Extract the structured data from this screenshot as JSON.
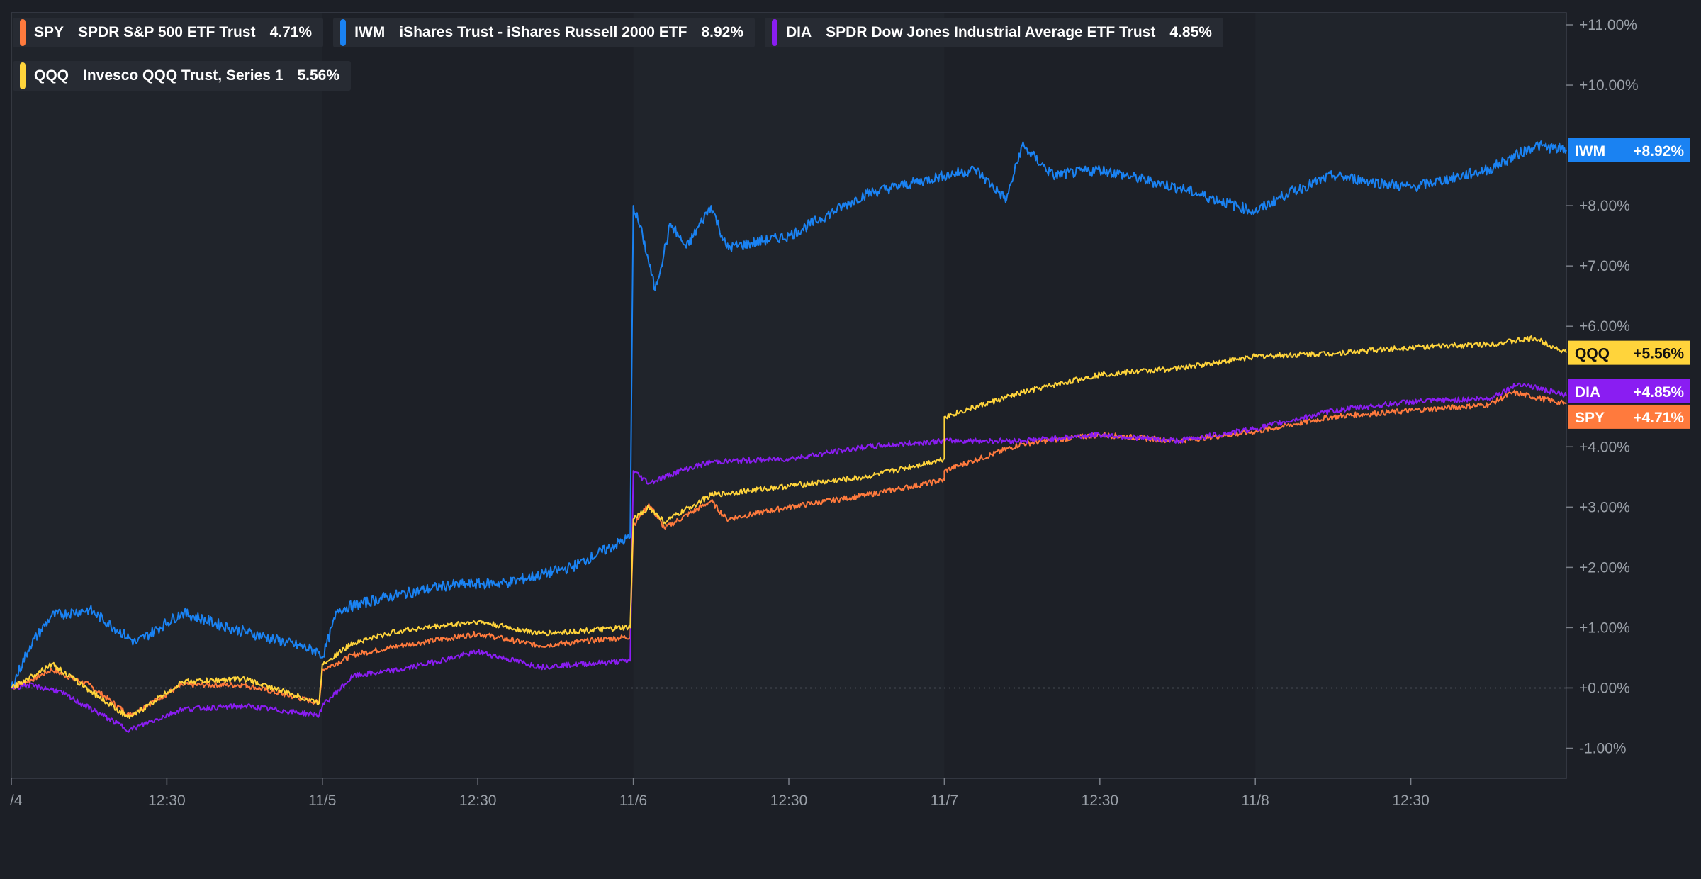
{
  "chart_data": {
    "type": "line",
    "title": "",
    "xlabel": "",
    "ylabel": "",
    "x_tick_labels": [
      "/4",
      "12:30",
      "11/5",
      "12:30",
      "11/6",
      "12:30",
      "11/7",
      "12:30",
      "11/8",
      "12:30"
    ],
    "x_tick_positions": [
      0,
      0.5,
      1,
      1.5,
      2,
      2.5,
      3,
      3.5,
      4,
      4.5
    ],
    "x_range": [
      0,
      5
    ],
    "y_tick_labels": [
      "+11.00%",
      "+10.00%",
      "+8.00%",
      "+7.00%",
      "+6.00%",
      "+4.00%",
      "+3.00%",
      "+2.00%",
      "+1.00%",
      "+0.00%",
      "-1.00%"
    ],
    "y_tick_values": [
      11,
      10,
      8,
      7,
      6,
      4,
      3,
      2,
      1,
      0,
      -1
    ],
    "ylim": [
      -1.5,
      11.2
    ],
    "baseline": 0,
    "series": [
      {
        "name": "SPY",
        "full_name": "SPDR S&P 500 ETF Trust",
        "legend_value": "4.71%",
        "end_label": "+4.71%",
        "color": "#ff7a3d",
        "text_color": "#ffffff",
        "points": [
          [
            0,
            0
          ],
          [
            0.05,
            0.1
          ],
          [
            0.13,
            0.3
          ],
          [
            0.25,
            0.05
          ],
          [
            0.38,
            -0.45
          ],
          [
            0.55,
            0.05
          ],
          [
            0.75,
            0.05
          ],
          [
            0.99,
            -0.25
          ],
          [
            1.0,
            0.3
          ],
          [
            1.1,
            0.55
          ],
          [
            1.25,
            0.7
          ],
          [
            1.5,
            0.9
          ],
          [
            1.7,
            0.7
          ],
          [
            1.99,
            0.85
          ],
          [
            2.0,
            2.7
          ],
          [
            2.05,
            3.05
          ],
          [
            2.1,
            2.65
          ],
          [
            2.25,
            3.1
          ],
          [
            2.3,
            2.8
          ],
          [
            2.5,
            3.0
          ],
          [
            2.75,
            3.2
          ],
          [
            3.0,
            3.45
          ],
          [
            3.0,
            3.6
          ],
          [
            3.25,
            4.05
          ],
          [
            3.5,
            4.2
          ],
          [
            3.75,
            4.1
          ],
          [
            4.0,
            4.25
          ],
          [
            4.25,
            4.5
          ],
          [
            4.5,
            4.6
          ],
          [
            4.75,
            4.7
          ],
          [
            4.83,
            4.9
          ],
          [
            5.0,
            4.71
          ]
        ]
      },
      {
        "name": "IWM",
        "full_name": "iShares Trust - iShares Russell 2000 ETF",
        "legend_value": "8.92%",
        "end_label": "+8.92%",
        "color": "#1a82f2",
        "text_color": "#ffffff",
        "points": [
          [
            0,
            0
          ],
          [
            0.06,
            0.7
          ],
          [
            0.13,
            1.2
          ],
          [
            0.25,
            1.3
          ],
          [
            0.4,
            0.75
          ],
          [
            0.55,
            1.25
          ],
          [
            0.7,
            1.0
          ],
          [
            0.85,
            0.8
          ],
          [
            0.99,
            0.6
          ],
          [
            1.0,
            0.5
          ],
          [
            1.05,
            1.3
          ],
          [
            1.2,
            1.5
          ],
          [
            1.4,
            1.7
          ],
          [
            1.6,
            1.75
          ],
          [
            1.8,
            2.0
          ],
          [
            1.99,
            2.5
          ],
          [
            2.0,
            8.0
          ],
          [
            2.03,
            7.5
          ],
          [
            2.07,
            6.6
          ],
          [
            2.12,
            7.7
          ],
          [
            2.17,
            7.3
          ],
          [
            2.25,
            8.0
          ],
          [
            2.3,
            7.3
          ],
          [
            2.5,
            7.5
          ],
          [
            2.75,
            8.2
          ],
          [
            3.0,
            8.5
          ],
          [
            3.1,
            8.6
          ],
          [
            3.2,
            8.1
          ],
          [
            3.25,
            9.0
          ],
          [
            3.35,
            8.5
          ],
          [
            3.5,
            8.6
          ],
          [
            3.75,
            8.3
          ],
          [
            4.0,
            7.9
          ],
          [
            4.1,
            8.2
          ],
          [
            4.25,
            8.5
          ],
          [
            4.5,
            8.3
          ],
          [
            4.75,
            8.6
          ],
          [
            4.9,
            9.0
          ],
          [
            5.0,
            8.92
          ]
        ]
      },
      {
        "name": "DIA",
        "full_name": "SPDR Dow Jones Industrial Average ETF Trust",
        "legend_value": "4.85%",
        "end_label": "+4.85%",
        "color": "#8a1df2",
        "text_color": "#ffffff",
        "points": [
          [
            0,
            0
          ],
          [
            0.05,
            0.05
          ],
          [
            0.15,
            -0.05
          ],
          [
            0.38,
            -0.7
          ],
          [
            0.55,
            -0.35
          ],
          [
            0.75,
            -0.3
          ],
          [
            0.99,
            -0.45
          ],
          [
            1.0,
            -0.3
          ],
          [
            1.1,
            0.2
          ],
          [
            1.25,
            0.3
          ],
          [
            1.5,
            0.6
          ],
          [
            1.7,
            0.35
          ],
          [
            1.99,
            0.45
          ],
          [
            2.0,
            3.6
          ],
          [
            2.05,
            3.4
          ],
          [
            2.15,
            3.6
          ],
          [
            2.25,
            3.75
          ],
          [
            2.5,
            3.8
          ],
          [
            2.75,
            4.0
          ],
          [
            3.0,
            4.1
          ],
          [
            3.25,
            4.1
          ],
          [
            3.5,
            4.2
          ],
          [
            3.75,
            4.1
          ],
          [
            4.0,
            4.3
          ],
          [
            4.25,
            4.6
          ],
          [
            4.5,
            4.75
          ],
          [
            4.75,
            4.8
          ],
          [
            4.85,
            5.05
          ],
          [
            5.0,
            4.85
          ]
        ]
      },
      {
        "name": "QQQ",
        "full_name": "Invesco QQQ Trust, Series 1",
        "legend_value": "5.56%",
        "end_label": "+5.56%",
        "color": "#ffd43b",
        "text_color": "#111111",
        "points": [
          [
            0,
            0
          ],
          [
            0.05,
            0.15
          ],
          [
            0.13,
            0.4
          ],
          [
            0.38,
            -0.5
          ],
          [
            0.55,
            0.1
          ],
          [
            0.75,
            0.15
          ],
          [
            0.99,
            -0.25
          ],
          [
            1.0,
            0.4
          ],
          [
            1.1,
            0.75
          ],
          [
            1.25,
            0.95
          ],
          [
            1.5,
            1.1
          ],
          [
            1.7,
            0.9
          ],
          [
            1.99,
            1.0
          ],
          [
            2.0,
            2.8
          ],
          [
            2.05,
            3.0
          ],
          [
            2.1,
            2.75
          ],
          [
            2.25,
            3.2
          ],
          [
            2.5,
            3.35
          ],
          [
            2.75,
            3.5
          ],
          [
            3.0,
            3.8
          ],
          [
            3.0,
            4.5
          ],
          [
            3.25,
            4.9
          ],
          [
            3.5,
            5.2
          ],
          [
            3.75,
            5.3
          ],
          [
            4.0,
            5.5
          ],
          [
            4.25,
            5.55
          ],
          [
            4.5,
            5.65
          ],
          [
            4.75,
            5.7
          ],
          [
            4.9,
            5.8
          ],
          [
            5.0,
            5.56
          ]
        ]
      }
    ]
  }
}
